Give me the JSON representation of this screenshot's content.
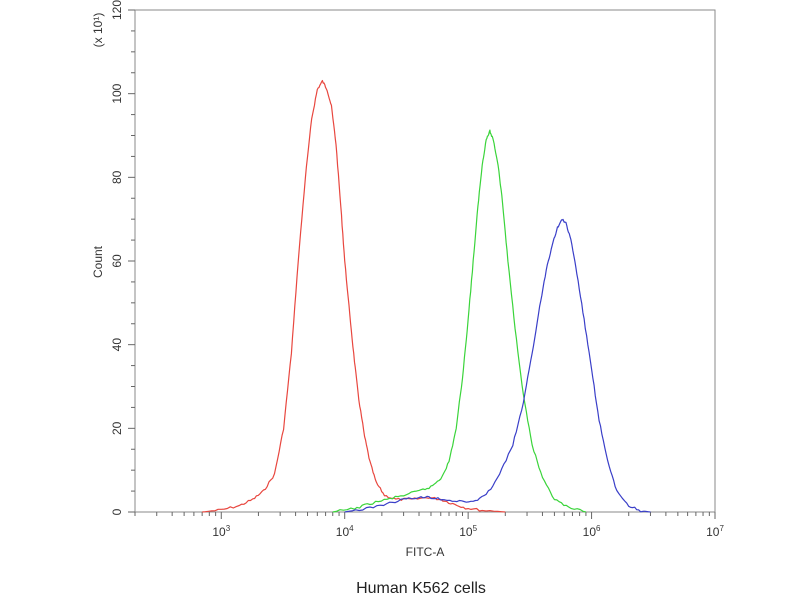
{
  "chart_data": {
    "type": "line",
    "xlabel": "FITC-A",
    "ylabel": "Count",
    "y_multiplier": "(x 10¹)",
    "caption": "Human K562 cells",
    "x_scale": "log",
    "xlim": [
      200,
      10000000
    ],
    "ylim": [
      0,
      120
    ],
    "x_ticks": [
      {
        "value": 1000,
        "base": "10",
        "exp": "3"
      },
      {
        "value": 10000,
        "base": "10",
        "exp": "4"
      },
      {
        "value": 100000,
        "base": "10",
        "exp": "5"
      },
      {
        "value": 1000000,
        "base": "10",
        "exp": "6"
      },
      {
        "value": 10000000,
        "base": "10",
        "exp": "7"
      }
    ],
    "y_ticks": [
      {
        "value": 0,
        "label": "0"
      },
      {
        "value": 20,
        "label": "20"
      },
      {
        "value": 40,
        "label": "40"
      },
      {
        "value": 60,
        "label": "60"
      },
      {
        "value": 80,
        "label": "80"
      },
      {
        "value": 100,
        "label": "100"
      },
      {
        "value": 120,
        "label": "120"
      }
    ],
    "grid": false,
    "legend": "none",
    "series": [
      {
        "color": "#e8473f",
        "points": [
          [
            700,
            0
          ],
          [
            1000,
            0.5
          ],
          [
            1400,
            1.5
          ],
          [
            1800,
            3
          ],
          [
            2200,
            5
          ],
          [
            2700,
            9
          ],
          [
            3200,
            20
          ],
          [
            3700,
            38
          ],
          [
            4200,
            60
          ],
          [
            4800,
            80
          ],
          [
            5400,
            94
          ],
          [
            6000,
            101
          ],
          [
            6600,
            103
          ],
          [
            7200,
            101
          ],
          [
            7800,
            97
          ],
          [
            8500,
            88
          ],
          [
            9300,
            73
          ],
          [
            10000,
            60
          ],
          [
            11000,
            47
          ],
          [
            12000,
            36
          ],
          [
            13000,
            27
          ],
          [
            14500,
            18
          ],
          [
            16000,
            12
          ],
          [
            18000,
            7
          ],
          [
            21000,
            4
          ],
          [
            26000,
            3
          ],
          [
            35000,
            3
          ],
          [
            48000,
            3.5
          ],
          [
            60000,
            3
          ],
          [
            75000,
            2
          ],
          [
            95000,
            1
          ],
          [
            130000,
            0.4
          ],
          [
            200000,
            0
          ]
        ]
      },
      {
        "color": "#3ad43a",
        "points": [
          [
            8000,
            0
          ],
          [
            12000,
            0.8
          ],
          [
            16000,
            2
          ],
          [
            22000,
            3
          ],
          [
            30000,
            4
          ],
          [
            40000,
            5
          ],
          [
            50000,
            6
          ],
          [
            60000,
            8
          ],
          [
            70000,
            12
          ],
          [
            80000,
            20
          ],
          [
            90000,
            32
          ],
          [
            100000,
            46
          ],
          [
            110000,
            60
          ],
          [
            120000,
            73
          ],
          [
            130000,
            83
          ],
          [
            140000,
            89
          ],
          [
            150000,
            91
          ],
          [
            160000,
            89
          ],
          [
            175000,
            83
          ],
          [
            190000,
            74
          ],
          [
            210000,
            60
          ],
          [
            240000,
            44
          ],
          [
            280000,
            28
          ],
          [
            330000,
            16
          ],
          [
            400000,
            8
          ],
          [
            500000,
            3
          ],
          [
            650000,
            1
          ],
          [
            900000,
            0
          ]
        ]
      },
      {
        "color": "#3a3fc8",
        "points": [
          [
            10000,
            0
          ],
          [
            15000,
            0.8
          ],
          [
            22000,
            2
          ],
          [
            30000,
            3
          ],
          [
            40000,
            3.5
          ],
          [
            50000,
            3.5
          ],
          [
            65000,
            3
          ],
          [
            85000,
            2.5
          ],
          [
            110000,
            2.5
          ],
          [
            140000,
            4
          ],
          [
            180000,
            9
          ],
          [
            230000,
            16
          ],
          [
            280000,
            26
          ],
          [
            330000,
            38
          ],
          [
            380000,
            49
          ],
          [
            430000,
            58
          ],
          [
            480000,
            64
          ],
          [
            530000,
            68
          ],
          [
            580000,
            70
          ],
          [
            620000,
            69
          ],
          [
            680000,
            65
          ],
          [
            760000,
            57
          ],
          [
            870000,
            46
          ],
          [
            1000000,
            34
          ],
          [
            1150000,
            22
          ],
          [
            1350000,
            12
          ],
          [
            1600000,
            5
          ],
          [
            2000000,
            1.5
          ],
          [
            2500000,
            0.3
          ],
          [
            3000000,
            0
          ]
        ]
      }
    ]
  }
}
